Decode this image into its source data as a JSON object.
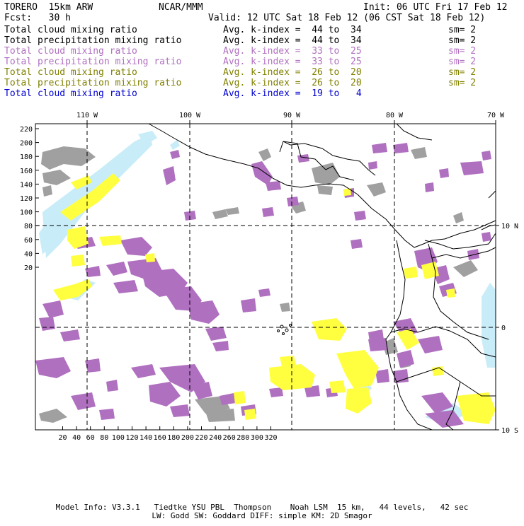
{
  "header": {
    "model": "TORERO  15km ARW",
    "center": "NCAR/MMM",
    "init": "Init: 06 UTC Fri 17 Feb 12",
    "fcst": "Fcst:   30 h",
    "valid": "Valid: 12 UTC Sat 18 Feb 12 (06 CST Sat 18 Feb 12)"
  },
  "legend": [
    {
      "variable": "Total cloud mixing ratio",
      "kindex": "Avg. k-index =  44 to  34",
      "sm": "sm= 2",
      "color": "#000000"
    },
    {
      "variable": "Total precipitation mixing ratio",
      "kindex": "Avg. k-index =  44 to  34",
      "sm": "sm= 2",
      "color": "#000000"
    },
    {
      "variable": "Total cloud mixing ratio",
      "kindex": "Avg. k-index =  33 to  25",
      "sm": "sm= 2",
      "color": "#b070c0"
    },
    {
      "variable": "Total precipitation mixing ratio",
      "kindex": "Avg. k-index =  33 to  25",
      "sm": "sm= 2",
      "color": "#b070c0"
    },
    {
      "variable": "Total cloud mixing ratio",
      "kindex": "Avg. k-index =  26 to  20",
      "sm": "sm= 2",
      "color": "#808000"
    },
    {
      "variable": "Total precipitation mixing ratio",
      "kindex": "Avg. k-index =  26 to  20",
      "sm": "sm= 2",
      "color": "#808000"
    },
    {
      "variable": "Total cloud mixing ratio",
      "kindex": "Avg. k-index =  19 to   4",
      "sm": "",
      "color": "#0000d0"
    }
  ],
  "axes": {
    "lon_labels": [
      "110 W",
      "100 W",
      "90 W",
      "80 W",
      "70 W"
    ],
    "lat_labels": [
      "10 N",
      "0",
      "10 S"
    ],
    "y_ticks": [
      "220",
      "200",
      "180",
      "160",
      "140",
      "120",
      "100",
      "80",
      "60",
      "40",
      "20"
    ],
    "x_ticks": [
      "20",
      "40",
      "60",
      "80",
      "100",
      "120",
      "140",
      "160",
      "180",
      "200",
      "220",
      "240",
      "260",
      "280",
      "300",
      "320"
    ]
  },
  "colors": {
    "gray": "#a0a0a0",
    "purple": "#b070c0",
    "yellow": "#ffff40",
    "lightblue": "#c8ecf8",
    "coast": "#000000"
  },
  "footer": {
    "line1": "Model Info: V3.3.1   Tiedtke YSU PBL  Thompson    Noah LSM  15 km,   44 levels,   42 sec",
    "line2": "LW: Godd SW: Goddard DIFF: simple KM: 2D Smagor"
  }
}
